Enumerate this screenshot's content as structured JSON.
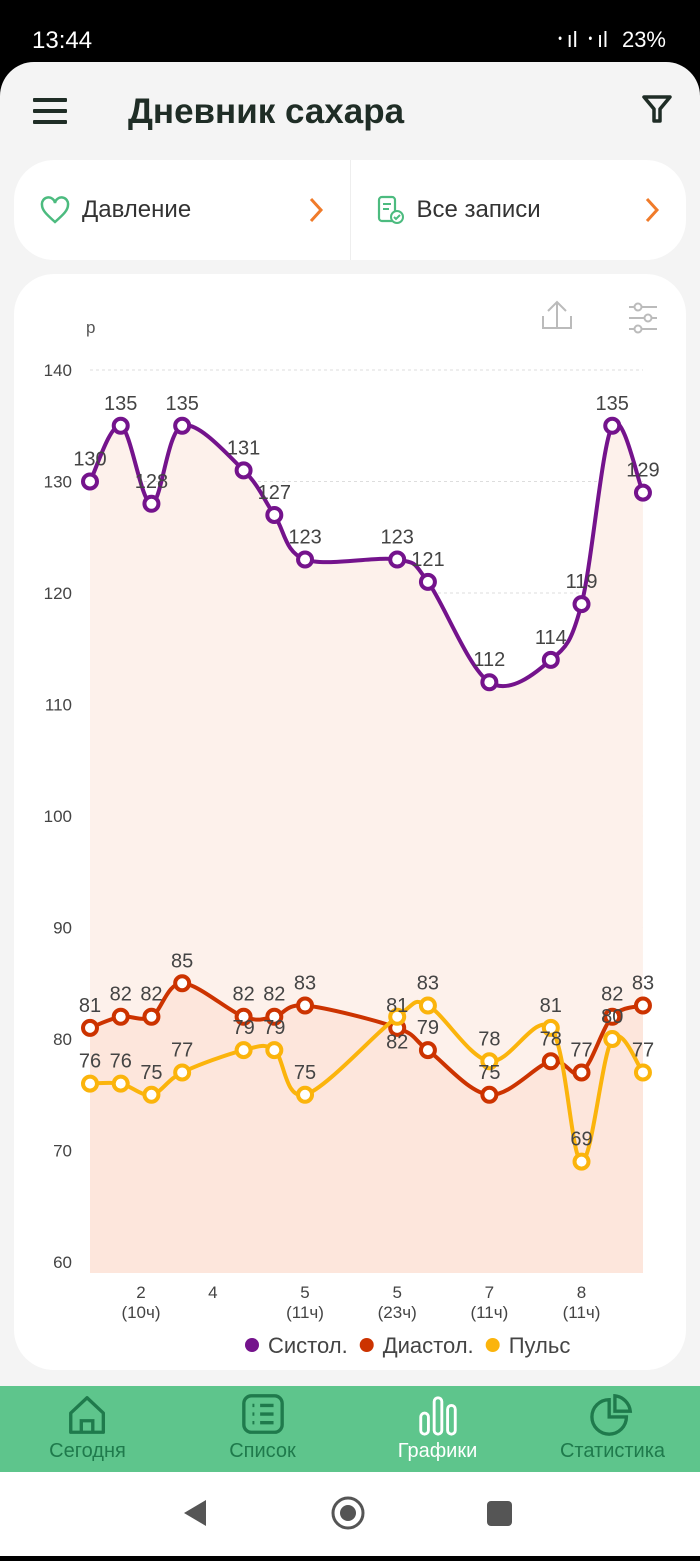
{
  "status_bar": {
    "time": "13:44",
    "battery": "23%"
  },
  "header": {
    "title": "Дневник сахара"
  },
  "selectors": {
    "measure": "Давление",
    "records": "Все записи"
  },
  "chart_data": {
    "type": "line",
    "ylabel": "р",
    "ylim": [
      60,
      140
    ],
    "yticks": [
      140,
      130,
      120,
      110,
      100,
      90,
      80,
      70,
      60
    ],
    "x": [
      0,
      1,
      2,
      3,
      5,
      6,
      7,
      10,
      11,
      13,
      15,
      16,
      17,
      18
    ],
    "xticks": [
      {
        "pos": 1.66,
        "label": "2",
        "sub": "(10ч)"
      },
      {
        "pos": 4,
        "label": "4",
        "sub": ""
      },
      {
        "pos": 7,
        "label": "5",
        "sub": "(11ч)"
      },
      {
        "pos": 10,
        "label": "5",
        "sub": "(23ч)"
      },
      {
        "pos": 13,
        "label": "7",
        "sub": "(11ч)"
      },
      {
        "pos": 16,
        "label": "8",
        "sub": "(11ч)"
      }
    ],
    "grid": true,
    "legend": "bottom",
    "series": [
      {
        "name": "Систол.",
        "color": "#74138c",
        "values": [
          130,
          135,
          128,
          135,
          131,
          127,
          123,
          123,
          121,
          112,
          114,
          119,
          135,
          129
        ]
      },
      {
        "name": "Диастол.",
        "color": "#cc3300",
        "values": [
          81,
          82,
          82,
          85,
          82,
          82,
          83,
          81,
          79,
          75,
          78,
          77,
          82,
          83
        ]
      },
      {
        "name": "Пульс",
        "color": "#fbb40c",
        "values": [
          76,
          76,
          75,
          77,
          79,
          79,
          75,
          82,
          83,
          78,
          81,
          69,
          80,
          77
        ]
      }
    ]
  },
  "nav": [
    {
      "label": "Сегодня",
      "icon": "home-icon"
    },
    {
      "label": "Список",
      "icon": "list-icon"
    },
    {
      "label": "Графики",
      "icon": "chart-icon",
      "active": true
    },
    {
      "label": "Статистика",
      "icon": "pie-icon"
    }
  ]
}
